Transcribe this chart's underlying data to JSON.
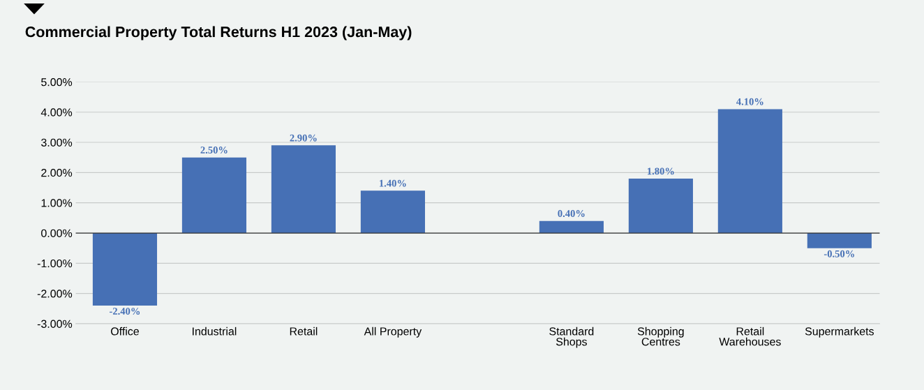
{
  "chart_data": {
    "type": "bar",
    "title": "Commercial Property Total Returns H1 2023 (Jan-May)",
    "categories": [
      "Office",
      "Industrial",
      "Retail",
      "All Property",
      null,
      "Standard\nShops",
      "Shopping\nCentres",
      "Retail\nWarehouses",
      "Supermarkets"
    ],
    "values": [
      -2.4,
      2.5,
      2.9,
      1.4,
      null,
      0.4,
      1.8,
      4.1,
      -0.5
    ],
    "value_labels": [
      "-2.40%",
      "2.50%",
      "2.90%",
      "1.40%",
      null,
      "0.40%",
      "1.80%",
      "4.10%",
      "-0.50%"
    ],
    "color": "#4670b5",
    "ylim": [
      -3,
      5
    ],
    "yticks": [
      {
        "value": -3,
        "label": "-3.00%"
      },
      {
        "value": -2,
        "label": "-2.00%"
      },
      {
        "value": -1,
        "label": "-1.00%"
      },
      {
        "value": 0,
        "label": "0.00%"
      },
      {
        "value": 1,
        "label": "1.00%"
      },
      {
        "value": 2,
        "label": "2.00%"
      },
      {
        "value": 3,
        "label": "3.00%"
      },
      {
        "value": 4,
        "label": "4.00%"
      },
      {
        "value": 5,
        "label": "5.00%"
      }
    ],
    "grid": "y"
  }
}
